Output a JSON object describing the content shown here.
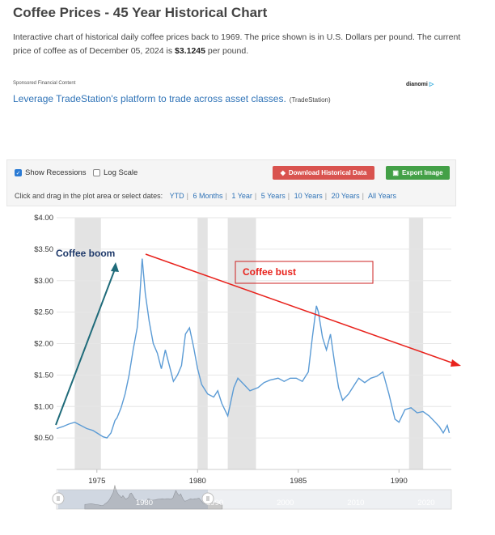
{
  "page": {
    "title": "Coffee Prices - 45 Year Historical Chart",
    "desc_1": "Interactive chart of historical daily coffee prices back to 1969. The price shown is in U.S. Dollars per pound. The current price of coffee as of December 05, 2024 is ",
    "current_price": "$3.1245",
    "desc_2": " per pound."
  },
  "ad": {
    "sponsor_label": "Sponsored Financial Content",
    "brand": "dianomi",
    "link_text": "Leverage TradeStation's platform to trade across asset classes.",
    "source": "(TradeStation)"
  },
  "controls": {
    "show_recessions": "Show Recessions",
    "show_recessions_checked": true,
    "log_scale": "Log Scale",
    "log_scale_checked": false,
    "download_label": "Download Historical Data",
    "export_label": "Export Image",
    "prompt": "Click and drag in the plot area or select dates:",
    "ranges": [
      "YTD",
      "6 Months",
      "1 Year",
      "5 Years",
      "10 Years",
      "20 Years",
      "All Years"
    ]
  },
  "colors": {
    "line": "#5b9bd5",
    "recession": "#e3e3e3",
    "boom_arrow": "#1f6b7a",
    "bust_arrow": "#e8221c",
    "boom_text": "#1f3a6b",
    "bust_text": "#e8221c"
  },
  "chart_data": {
    "type": "line",
    "title": "",
    "xlabel": "",
    "ylabel": "",
    "ylim": [
      0,
      4
    ],
    "xlim": [
      1973,
      1992.6
    ],
    "yticks": [
      "$4.00",
      "$3.50",
      "$3.00",
      "$2.50",
      "$2.00",
      "$1.50",
      "$1.00",
      "$0.50"
    ],
    "ytick_values": [
      4,
      3.5,
      3,
      2.5,
      2,
      1.5,
      1,
      0.5
    ],
    "xticks": [
      "1975",
      "1980",
      "1985",
      "1990"
    ],
    "xtick_values": [
      1975,
      1980,
      1985,
      1990
    ],
    "grid": true,
    "recessions": [
      [
        1973.9,
        1975.2
      ],
      [
        1980.0,
        1980.5
      ],
      [
        1981.5,
        1982.9
      ],
      [
        1990.5,
        1991.2
      ]
    ],
    "series": [
      {
        "x": [
          1973.0,
          1973.3,
          1973.6,
          1973.9,
          1974.2,
          1974.5,
          1974.8,
          1975.0,
          1975.3,
          1975.5,
          1975.7,
          1975.9,
          1976.0,
          1976.2,
          1976.4,
          1976.6,
          1976.8,
          1977.0,
          1977.1,
          1977.25,
          1977.4,
          1977.6,
          1977.8,
          1978.0,
          1978.2,
          1978.4,
          1978.6,
          1978.8,
          1979.0,
          1979.2,
          1979.4,
          1979.6,
          1979.8,
          1980.0,
          1980.2,
          1980.5,
          1980.8,
          1981.0,
          1981.2,
          1981.5,
          1981.8,
          1982.0,
          1982.3,
          1982.6,
          1983.0,
          1983.3,
          1983.6,
          1984.0,
          1984.3,
          1984.6,
          1984.9,
          1985.2,
          1985.5,
          1985.7,
          1985.9,
          1986.0,
          1986.2,
          1986.4,
          1986.6,
          1986.8,
          1987.0,
          1987.2,
          1987.5,
          1987.8,
          1988.0,
          1988.3,
          1988.6,
          1988.9,
          1989.2,
          1989.5,
          1989.8,
          1990.0,
          1990.3,
          1990.6,
          1990.9,
          1991.2,
          1991.5,
          1991.8,
          1992.0,
          1992.2,
          1992.4,
          1992.5
        ],
        "y": [
          0.65,
          0.68,
          0.72,
          0.75,
          0.7,
          0.65,
          0.62,
          0.58,
          0.52,
          0.5,
          0.58,
          0.78,
          0.82,
          0.98,
          1.2,
          1.5,
          1.9,
          2.25,
          2.6,
          3.35,
          2.8,
          2.35,
          2.0,
          1.85,
          1.6,
          1.9,
          1.65,
          1.4,
          1.5,
          1.65,
          2.15,
          2.25,
          1.95,
          1.6,
          1.35,
          1.2,
          1.15,
          1.25,
          1.05,
          0.85,
          1.3,
          1.45,
          1.35,
          1.25,
          1.3,
          1.38,
          1.42,
          1.45,
          1.4,
          1.45,
          1.45,
          1.4,
          1.55,
          2.1,
          2.6,
          2.5,
          2.1,
          1.9,
          2.15,
          1.7,
          1.3,
          1.1,
          1.2,
          1.35,
          1.45,
          1.38,
          1.45,
          1.48,
          1.55,
          1.2,
          0.8,
          0.75,
          0.95,
          0.98,
          0.9,
          0.92,
          0.85,
          0.75,
          0.68,
          0.58,
          0.7,
          0.58
        ]
      }
    ],
    "annotations": [
      "Coffee boom",
      "Coffee bust"
    ],
    "navigator": {
      "labels": [
        "1980",
        "1990",
        "2000",
        "2010",
        "2020"
      ],
      "label_values": [
        1980,
        1990,
        2000,
        2010,
        2020
      ],
      "handle_icon": "grip-icon"
    }
  }
}
